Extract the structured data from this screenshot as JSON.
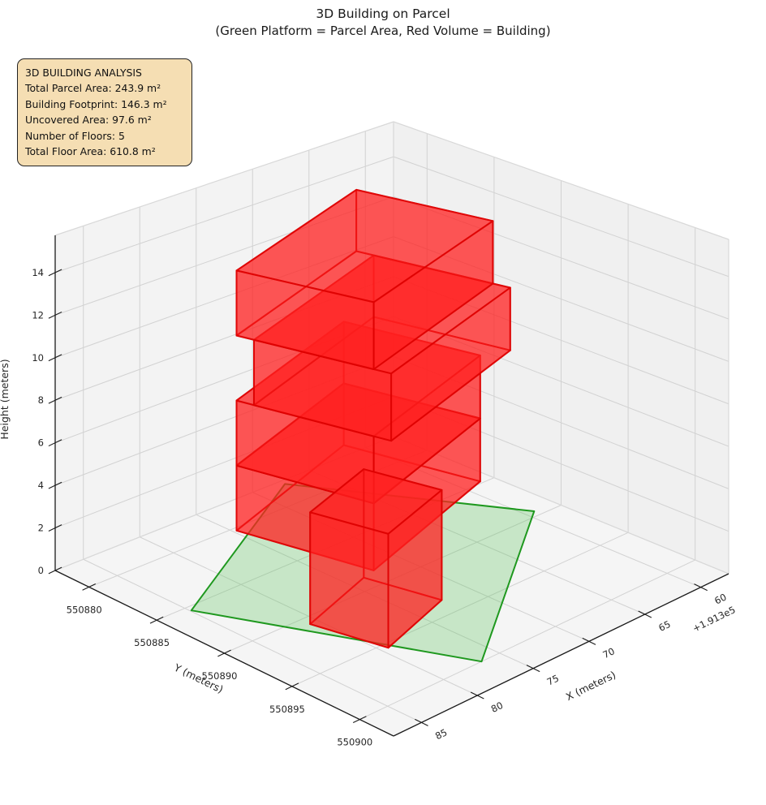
{
  "title": {
    "line1": "3D Building on Parcel",
    "line2": "(Green Platform = Parcel Area, Red Volume = Building)"
  },
  "info_box": {
    "heading": "3D BUILDING ANALYSIS",
    "lines": [
      "Total Parcel Area: 243.9 m²",
      "Building Footprint: 146.3 m²",
      "Uncovered Area: 97.6 m²",
      "Number of Floors: 5",
      "Total Floor Area: 610.8 m²"
    ],
    "bg_color": "#f5deb3"
  },
  "chart_data": {
    "type": "3d-building-parcel-plot",
    "stats": {
      "total_parcel_area_m2": 243.9,
      "building_footprint_m2": 146.3,
      "uncovered_area_m2": 97.6,
      "number_of_floors": 5,
      "total_floor_area_m2": 610.8
    },
    "axes": {
      "x": {
        "label": "X (meters)",
        "ticks": [
          60,
          65,
          70,
          75,
          80,
          85
        ],
        "offset_text": "+1.913e5",
        "range": [
          57.5,
          87.5
        ]
      },
      "y": {
        "label": "Y (meters)",
        "ticks": [
          550880,
          550885,
          550890,
          550895,
          550900
        ],
        "range": [
          550877.5,
          550902.5
        ]
      },
      "z": {
        "label": "Height (meters)",
        "ticks": [
          0,
          2,
          4,
          6,
          8,
          10,
          12,
          14
        ],
        "range": [
          0,
          15.75
        ]
      }
    },
    "parcel": {
      "vertices": [
        [
          84.9,
          550885.4
        ],
        [
          76.6,
          550900.0
        ],
        [
          59.3,
          550889.5
        ],
        [
          67.6,
          550877.9
        ]
      ],
      "z": 0,
      "fill": "#5ec45e",
      "fill_opacity": 0.3,
      "edge": "#149414"
    },
    "building": {
      "fill": "#ff2020",
      "fill_opacity": 0.5,
      "edge": "#dd0000",
      "floors": [
        {
          "name": "floor-2",
          "z0": 2.3,
          "z1": 5.3,
          "footprint": [
            [
              79.8,
              550884.5
            ],
            [
              65.79,
              550880.75
            ],
            [
              63.57,
              550889.05
            ],
            [
              77.57,
              550892.81
            ]
          ]
        },
        {
          "name": "floor-3",
          "z0": 5.3,
          "z1": 8.3,
          "footprint": [
            [
              79.8,
              550884.5
            ],
            [
              65.79,
              550880.75
            ],
            [
              63.57,
              550889.05
            ],
            [
              77.57,
              550892.81
            ]
          ]
        },
        {
          "name": "floor-4",
          "z0": 8.3,
          "z1": 11.3,
          "footprint": [
            [
              79.52,
              550885.56
            ],
            [
              63.87,
              550881.37
            ],
            [
              61.64,
              550889.67
            ],
            [
              77.29,
              550893.87
            ]
          ]
        },
        {
          "name": "floor-5",
          "z0": 11.3,
          "z1": 14.3,
          "footprint": [
            [
              79.8,
              550884.5
            ],
            [
              64.15,
              550880.31
            ],
            [
              61.92,
              550888.61
            ],
            [
              77.57,
              550892.81
            ]
          ]
        },
        {
          "name": "floor-1-annex",
          "z0": 0.0,
          "z1": 5.0,
          "footprint": [
            [
              80.7,
              550890.7
            ],
            [
              73.65,
              550888.81
            ],
            [
              72.38,
              550893.54
            ],
            [
              79.43,
              550895.43
            ]
          ]
        }
      ]
    },
    "style": {
      "pane_fill": "#f3f3f3",
      "floor_pane_fill": "#f5f5f5",
      "grid_color": "#d2d2d2",
      "pane_edge_color": "#d8d8d8",
      "spine_color": "#1a1a1a",
      "text_color": "#262626"
    }
  }
}
